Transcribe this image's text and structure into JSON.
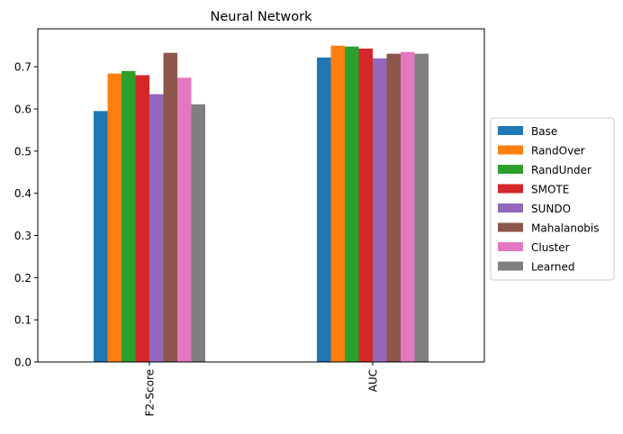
{
  "chart_data": {
    "type": "bar",
    "title": "Neural Network",
    "xlabel": "",
    "ylabel": "",
    "categories": [
      "F2-Score",
      "AUC"
    ],
    "ylim": [
      0,
      0.79
    ],
    "yticks": [
      0.0,
      0.1,
      0.2,
      0.3,
      0.4,
      0.5,
      0.6,
      0.7
    ],
    "ytick_labels": [
      "0.0",
      "0.1",
      "0.2",
      "0.3",
      "0.4",
      "0.5",
      "0.6",
      "0.7"
    ],
    "grid": false,
    "legend_position": "center-right-outside",
    "series": [
      {
        "name": "Base",
        "color": "#1f77b4",
        "values": [
          0.595,
          0.722
        ]
      },
      {
        "name": "RandOver",
        "color": "#ff7f0e",
        "values": [
          0.684,
          0.75
        ]
      },
      {
        "name": "RandUnder",
        "color": "#2ca02c",
        "values": [
          0.69,
          0.748
        ]
      },
      {
        "name": "SMOTE",
        "color": "#d62728",
        "values": [
          0.68,
          0.743
        ]
      },
      {
        "name": "SUNDO",
        "color": "#9467bd",
        "values": [
          0.635,
          0.72
        ]
      },
      {
        "name": "Mahalanobis",
        "color": "#8c564b",
        "values": [
          0.733,
          0.731
        ]
      },
      {
        "name": "Cluster",
        "color": "#e377c2",
        "values": [
          0.674,
          0.735
        ]
      },
      {
        "name": "Learned",
        "color": "#7f7f7f",
        "values": [
          0.611,
          0.731
        ]
      }
    ]
  }
}
